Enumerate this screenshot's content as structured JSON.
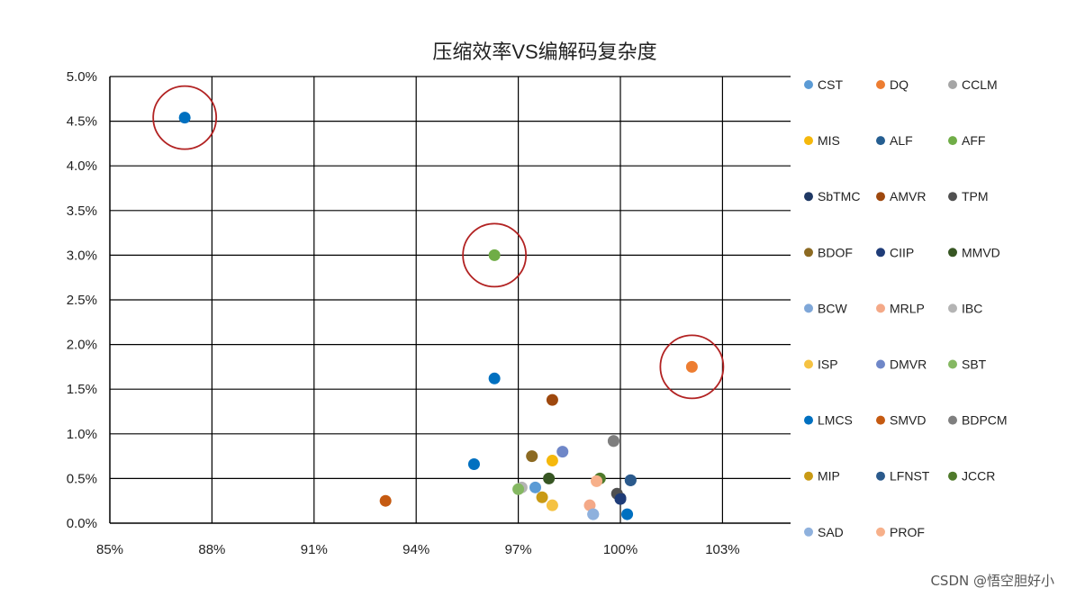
{
  "chart_data": {
    "type": "scatter",
    "title": "压缩效率VS编解码复杂度",
    "xlabel": "",
    "ylabel": "",
    "xlim": [
      0.85,
      1.05
    ],
    "ylim": [
      0.0,
      0.05
    ],
    "x_ticks": [
      {
        "value": 0.85,
        "label": "85%"
      },
      {
        "value": 0.88,
        "label": "88%"
      },
      {
        "value": 0.91,
        "label": "91%"
      },
      {
        "value": 0.94,
        "label": "94%"
      },
      {
        "value": 0.97,
        "label": "97%"
      },
      {
        "value": 1.0,
        "label": "100%"
      },
      {
        "value": 1.03,
        "label": "103%"
      }
    ],
    "y_ticks": [
      {
        "value": 0.0,
        "label": "0.0%"
      },
      {
        "value": 0.005,
        "label": "0.5%"
      },
      {
        "value": 0.01,
        "label": "1.0%"
      },
      {
        "value": 0.015,
        "label": "1.5%"
      },
      {
        "value": 0.02,
        "label": "2.0%"
      },
      {
        "value": 0.025,
        "label": "2.5%"
      },
      {
        "value": 0.03,
        "label": "3.0%"
      },
      {
        "value": 0.035,
        "label": "3.5%"
      },
      {
        "value": 0.04,
        "label": "4.0%"
      },
      {
        "value": 0.045,
        "label": "4.5%"
      },
      {
        "value": 0.05,
        "label": "5.0%"
      }
    ],
    "grid": true,
    "legend_position": "right",
    "series": [
      {
        "name": "CST",
        "color": "#5b9bd5",
        "x": 0.975,
        "y": 0.004
      },
      {
        "name": "DQ",
        "color": "#ed7d31",
        "x": 1.021,
        "y": 0.0175
      },
      {
        "name": "CCLM",
        "color": "#a5a5a5",
        "x": 0.998,
        "y": 0.0092
      },
      {
        "name": "MIS",
        "color": "#f5b80c",
        "x": 0.98,
        "y": 0.007
      },
      {
        "name": "ALF",
        "color": "#255e91",
        "x": 1.003,
        "y": 0.0048
      },
      {
        "name": "AFF",
        "color": "#70ad47",
        "x": 0.963,
        "y": 0.03
      },
      {
        "name": "SbTMC",
        "color": "#1f3864",
        "x": 1.0,
        "y": 0.0028
      },
      {
        "name": "AMVR",
        "color": "#9e480e",
        "x": 0.98,
        "y": 0.0138
      },
      {
        "name": "TPM",
        "color": "#505050",
        "x": 0.999,
        "y": 0.0033
      },
      {
        "name": "BDOF",
        "color": "#8c6a22",
        "x": 0.974,
        "y": 0.0075
      },
      {
        "name": "CIIP",
        "color": "#1f3c78",
        "x": 1.0,
        "y": 0.0027
      },
      {
        "name": "MMVD",
        "color": "#375623",
        "x": 0.979,
        "y": 0.005
      },
      {
        "name": "BCW",
        "color": "#7fa7d8",
        "x": 0.992,
        "y": 0.001
      },
      {
        "name": "MRLP",
        "color": "#f4a988",
        "x": 0.991,
        "y": 0.002
      },
      {
        "name": "IBC",
        "color": "#b4b4b4",
        "x": 0.971,
        "y": 0.004
      },
      {
        "name": "ISP",
        "color": "#f5c242",
        "x": 0.98,
        "y": 0.002
      },
      {
        "name": "DMVR",
        "color": "#6f87c8",
        "x": 0.983,
        "y": 0.008
      },
      {
        "name": "SBT",
        "color": "#85b862",
        "x": 0.97,
        "y": 0.0038
      },
      {
        "name": "LMCS",
        "color": "#0070c0",
        "x": 0.872,
        "y": 0.0454
      },
      {
        "name": "SMVD",
        "color": "#c55a11",
        "x": 0.931,
        "y": 0.0025
      },
      {
        "name": "BDPCM",
        "color": "#7f7f7f",
        "x": 0.998,
        "y": 0.0092
      },
      {
        "name": "MIP",
        "color": "#c99a15",
        "x": 0.977,
        "y": 0.0029
      },
      {
        "name": "LFNST",
        "color": "#2b5a8c",
        "x": 1.003,
        "y": 0.0048
      },
      {
        "name": "JCCR",
        "color": "#4f7a2b",
        "x": 0.994,
        "y": 0.005
      },
      {
        "name": "SAD",
        "color": "#8fb1dd",
        "x": 0.992,
        "y": 0.001
      },
      {
        "name": "PROF",
        "color": "#f7b08a",
        "x": 0.993,
        "y": 0.0047
      }
    ],
    "extra_points": [
      {
        "color": "#0070c0",
        "x": 0.963,
        "y": 0.0162
      },
      {
        "color": "#0070c0",
        "x": 0.957,
        "y": 0.0066
      },
      {
        "color": "#0070c0",
        "x": 1.002,
        "y": 0.001
      }
    ],
    "highlight_circles": [
      {
        "x": 0.872,
        "y": 0.0454,
        "color": "#b22222"
      },
      {
        "x": 0.963,
        "y": 0.03,
        "color": "#b22222"
      },
      {
        "x": 1.021,
        "y": 0.0175,
        "color": "#b22222"
      }
    ]
  },
  "watermark": "CSDN @悟空胆好小"
}
